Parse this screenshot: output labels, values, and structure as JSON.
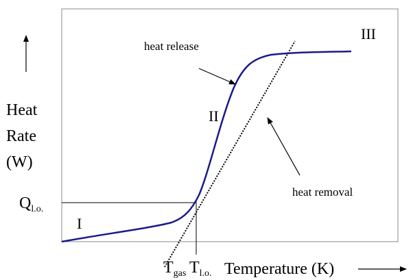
{
  "y_axis_label": [
    "Heat",
    "Rate",
    "(W)"
  ],
  "x_axis_label": "Temperature (K)",
  "q_label": {
    "main": "Q",
    "sub": "l.o."
  },
  "t_gas_label": {
    "main": "T",
    "sub": "gas"
  },
  "t_lo_label": {
    "main": "T",
    "sub": "l.o."
  },
  "regions": [
    "I",
    "II",
    "III"
  ],
  "annotations": {
    "heat_release": "heat release",
    "heat_removal": "heat removal"
  }
}
